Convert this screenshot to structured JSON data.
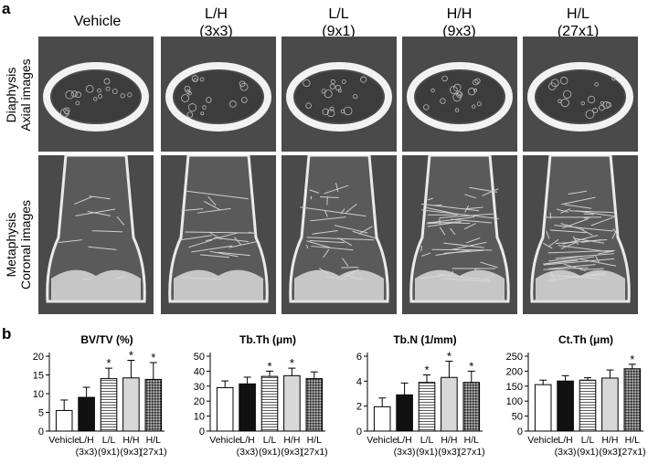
{
  "figure": {
    "panel_a": "a",
    "panel_b": "b",
    "columns": [
      "Vehicle",
      "L/H\n(3x3)",
      "L/L\n(9x1)",
      "H/H\n(9x3)",
      "H/L\n(27x1)"
    ],
    "rows": [
      "Diaphysis\nAxial images",
      "Metaphysis\nCoronal images"
    ]
  },
  "chart_data": [
    {
      "type": "bar",
      "title": "BV/TV (%)",
      "categories": [
        "Vehicle",
        "L/H\n(3x3)",
        "L/L\n(9x1)",
        "H/H\n(9x3)",
        "H/L\n(27x1)"
      ],
      "values": [
        5.5,
        9.0,
        14.0,
        14.2,
        13.8
      ],
      "errors": [
        2.8,
        2.7,
        2.8,
        4.7,
        4.5
      ],
      "significant": [
        "",
        "",
        "*",
        "*",
        "*"
      ],
      "yticks": [
        0,
        5,
        10,
        15,
        20
      ],
      "ylim": [
        0,
        20
      ]
    },
    {
      "type": "bar",
      "title": "Tb.Th (μm)",
      "categories": [
        "Vehicle",
        "L/H\n(3x3)",
        "L/L\n(9x1)",
        "H/H\n(9x3)",
        "H/L\n(27x1)"
      ],
      "values": [
        29,
        31.5,
        36.5,
        37,
        35
      ],
      "errors": [
        4.5,
        4.5,
        3.5,
        5,
        4.5
      ],
      "significant": [
        "",
        "",
        "*",
        "*",
        ""
      ],
      "yticks": [
        0,
        10,
        20,
        30,
        40,
        50
      ],
      "ylim": [
        0,
        50
      ]
    },
    {
      "type": "bar",
      "title": "Tb.N (1/mm)",
      "categories": [
        "Vehicle",
        "L/H\n(3x3)",
        "L/L\n(9x1)",
        "H/H\n(9x3)",
        "H/L\n(27x1)"
      ],
      "values": [
        1.95,
        2.9,
        3.9,
        4.3,
        3.9
      ],
      "errors": [
        0.7,
        0.95,
        0.6,
        1.3,
        0.9
      ],
      "significant": [
        "",
        "",
        "*",
        "*",
        "*"
      ],
      "yticks": [
        0,
        2,
        4,
        6
      ],
      "ylim": [
        0,
        6
      ]
    },
    {
      "type": "bar",
      "title": "Ct.Th (μm)",
      "categories": [
        "Vehicle",
        "L/H\n(3x3)",
        "L/L\n(9x1)",
        "H/H\n(9x3)",
        "H/L\n(27x1)"
      ],
      "values": [
        155,
        167,
        170,
        177,
        208
      ],
      "errors": [
        15,
        18,
        8,
        27,
        15
      ],
      "significant": [
        "",
        "",
        "",
        "",
        "*"
      ],
      "yticks": [
        0,
        50,
        100,
        150,
        200,
        250
      ],
      "ylim": [
        0,
        250
      ]
    }
  ],
  "colors": {
    "bar_fills": [
      "#ffffff",
      "#111111",
      "hlines",
      "#d8d8d8",
      "crosshatch"
    ],
    "ct_image_bg": "#454545",
    "bone": "#f2f2f2"
  }
}
